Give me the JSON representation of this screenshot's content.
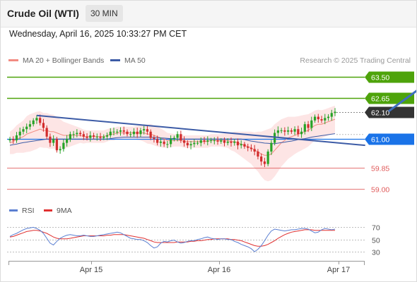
{
  "header": {
    "title": "Crude Oil (WTI)",
    "timeframe": "30 MIN"
  },
  "datetime": "Wednesday, April 16, 2025 10:33:27 PM CET",
  "legend": {
    "ma_bb": "MA 20 + Bollinger Bands",
    "ma50": "MA 50"
  },
  "credit": "Research © 2025 Trading Central",
  "rsi_legend": {
    "rsi": "RSI",
    "ma9": "9MA"
  },
  "colors": {
    "green_level": "#4ea30b",
    "current": "#333333",
    "pivot": "#1a73e8",
    "support": "#e05a5a",
    "ma20": "#f28b82",
    "ma50": "#3c5ba6",
    "band_fill": "#fde0e0",
    "up_candle": "#27a327",
    "down_candle": "#d22d2d",
    "rsi": "#5b7fd1",
    "rsi_ma": "#e03030",
    "arrow": "#3f6fbf"
  },
  "chart_data": [
    {
      "type": "line",
      "name": "price",
      "x_labels": [
        "Apr 15",
        "Apr 16",
        "Apr 17"
      ],
      "y_range": [
        58.6,
        63.9
      ],
      "levels": [
        {
          "label": "63.50",
          "value": 63.5,
          "kind": "resistance"
        },
        {
          "label": "62.65",
          "value": 62.65,
          "kind": "resistance"
        },
        {
          "label": "62.10",
          "value": 62.1,
          "kind": "current"
        },
        {
          "label": "61.00",
          "value": 61.0,
          "kind": "pivot"
        },
        {
          "label": "59.85",
          "value": 59.85,
          "kind": "support"
        },
        {
          "label": "59.00",
          "value": 59.0,
          "kind": "support"
        }
      ],
      "candles_close": [
        61.0,
        60.95,
        61.15,
        61.3,
        61.4,
        61.5,
        61.6,
        61.75,
        61.85,
        61.65,
        61.45,
        61.1,
        60.85,
        61.0,
        60.55,
        60.6,
        60.85,
        61.0,
        61.2,
        61.2,
        61.25,
        61.2,
        61.1,
        61.05,
        61.15,
        61.1,
        61.1,
        61.05,
        61.1,
        61.15,
        61.3,
        61.3,
        61.3,
        61.35,
        61.3,
        61.2,
        61.2,
        61.3,
        61.2,
        61.35,
        61.4,
        61.3,
        61.05,
        61.0,
        60.85,
        60.9,
        60.8,
        60.8,
        61.0,
        61.05,
        61.2,
        60.95,
        60.85,
        60.75,
        60.8,
        60.85,
        60.85,
        60.95,
        60.9,
        60.95,
        60.95,
        60.95,
        60.9,
        60.95,
        60.85,
        60.9,
        60.85,
        60.9,
        60.75,
        60.8,
        60.7,
        60.65,
        60.6,
        60.5,
        60.3,
        60.1,
        60.0,
        60.5,
        60.85,
        61.25,
        61.35,
        61.35,
        61.3,
        61.35,
        61.3,
        61.4,
        61.2,
        61.3,
        61.6,
        61.45,
        61.75,
        61.9,
        61.8,
        61.75,
        61.85,
        61.9,
        62.05,
        62.1
      ],
      "ma20": [
        60.85,
        60.9,
        61.0,
        61.05,
        61.1,
        61.2,
        61.25,
        61.3,
        61.35,
        61.4,
        61.35,
        61.35,
        61.3,
        61.3,
        61.25,
        61.2,
        61.15,
        61.15,
        61.15,
        61.15,
        61.15,
        61.15,
        61.1,
        61.1,
        61.1,
        61.1,
        61.1,
        61.1,
        61.1,
        61.15,
        61.2,
        61.2,
        61.25,
        61.25,
        61.25,
        61.25,
        61.25,
        61.25,
        61.25,
        61.25,
        61.25,
        61.2,
        61.2,
        61.15,
        61.1,
        61.05,
        61.0,
        60.95,
        60.95,
        60.95,
        60.95,
        60.95,
        60.9,
        60.9,
        60.9,
        60.9,
        60.9,
        60.9,
        60.9,
        60.9,
        60.95,
        60.95,
        60.95,
        60.95,
        60.95,
        60.95,
        60.9,
        60.9,
        60.85,
        60.8,
        60.75,
        60.7,
        60.65,
        60.55,
        60.5,
        60.4,
        60.35,
        60.35,
        60.4,
        60.55,
        60.7,
        60.85,
        60.95,
        61.05,
        61.1,
        61.15,
        61.2,
        61.25,
        61.3,
        61.35,
        61.45,
        61.55,
        61.6,
        61.6,
        61.65,
        61.7,
        61.75,
        61.8
      ],
      "ma50": [
        60.75,
        60.78,
        60.8,
        60.83,
        60.86,
        60.88,
        60.9,
        60.92,
        60.94,
        60.96,
        60.98,
        61.0,
        61.0,
        61.0,
        61.0,
        61.0,
        61.0,
        61.0,
        61.0,
        61.0,
        61.0,
        61.0,
        61.0,
        61.0,
        61.0,
        61.0,
        61.0,
        61.0,
        61.0,
        61.0,
        61.02,
        61.04,
        61.06,
        61.07,
        61.08,
        61.08,
        61.08,
        61.08,
        61.08,
        61.08,
        61.08,
        61.08,
        61.08,
        61.07,
        61.06,
        61.05,
        61.04,
        61.03,
        61.02,
        61.02,
        61.0,
        61.0,
        61.0,
        61.0,
        61.0,
        61.0,
        61.0,
        61.0,
        61.0,
        61.0,
        61.0,
        61.0,
        61.0,
        61.0,
        61.0,
        61.0,
        61.0,
        61.0,
        61.0,
        61.0,
        60.98,
        60.95,
        60.92,
        60.9,
        60.88,
        60.86,
        60.84,
        60.83,
        60.82,
        60.82,
        60.84,
        60.86,
        60.88,
        60.9,
        60.92,
        60.95,
        60.98,
        61.0,
        61.02,
        61.05,
        61.08,
        61.1,
        61.12,
        61.14,
        61.16,
        61.18,
        61.2,
        61.22
      ],
      "bb_width": [
        0.45,
        0.5,
        0.55,
        0.6,
        0.65,
        0.72,
        0.75,
        0.75,
        0.75,
        0.72,
        0.7,
        0.7,
        0.7,
        0.68,
        0.65,
        0.6,
        0.55,
        0.5,
        0.45,
        0.4,
        0.35,
        0.3,
        0.28,
        0.25,
        0.25,
        0.25,
        0.25,
        0.25,
        0.25,
        0.25,
        0.25,
        0.25,
        0.25,
        0.25,
        0.25,
        0.25,
        0.25,
        0.25,
        0.28,
        0.3,
        0.35,
        0.38,
        0.4,
        0.4,
        0.4,
        0.38,
        0.35,
        0.3,
        0.28,
        0.25,
        0.25,
        0.25,
        0.25,
        0.25,
        0.25,
        0.25,
        0.25,
        0.25,
        0.25,
        0.25,
        0.25,
        0.25,
        0.25,
        0.25,
        0.28,
        0.3,
        0.35,
        0.4,
        0.45,
        0.5,
        0.55,
        0.6,
        0.65,
        0.72,
        0.8,
        0.9,
        1.0,
        1.05,
        1.05,
        1.05,
        1.0,
        0.95,
        0.9,
        0.85,
        0.8,
        0.75,
        0.72,
        0.7,
        0.68,
        0.65,
        0.62,
        0.6,
        0.58,
        0.56,
        0.55,
        0.55,
        0.55,
        0.55
      ],
      "trendlines": [
        {
          "from": [
            8,
            61.95
          ],
          "to": [
            106,
            60.75
          ]
        }
      ],
      "projection_arrow": {
        "from": [
          113,
          62.12
        ],
        "to": [
          127,
          63.5
        ]
      }
    },
    {
      "type": "line",
      "name": "rsi",
      "series_labels": [
        "RSI",
        "9MA"
      ],
      "y_ticks": [
        30,
        50,
        70
      ],
      "y_range": [
        15,
        82
      ],
      "rsi": [
        55,
        58,
        60,
        63,
        66,
        68,
        69,
        70,
        68,
        65,
        60,
        52,
        44,
        41,
        47,
        52,
        55,
        57,
        58,
        57,
        56,
        56,
        57,
        56,
        55,
        55,
        56,
        57,
        58,
        59,
        60,
        61,
        62,
        61,
        58,
        55,
        52,
        51,
        50,
        50,
        48,
        45,
        40,
        36,
        38,
        44,
        47,
        46,
        48,
        49,
        46,
        44,
        45,
        47,
        48,
        48,
        50,
        51,
        53,
        54,
        52,
        51,
        50,
        51,
        51,
        50,
        50,
        47,
        45,
        42,
        40,
        38,
        35,
        30,
        34,
        40,
        48,
        57,
        64,
        67,
        66,
        65,
        64,
        65,
        66,
        66,
        67,
        68,
        68,
        67,
        64,
        61,
        62,
        66,
        68,
        67,
        66,
        67
      ],
      "ma9": [
        54,
        55,
        57,
        59,
        61,
        63,
        64,
        65,
        65,
        64,
        62,
        60,
        57,
        54,
        52,
        51,
        51,
        51,
        52,
        53,
        54,
        55,
        56,
        56,
        56,
        56,
        56,
        56,
        56,
        57,
        57,
        58,
        58,
        58,
        58,
        57,
        56,
        55,
        54,
        53,
        52,
        50,
        48,
        46,
        45,
        45,
        45,
        45,
        45,
        45,
        46,
        46,
        46,
        46,
        47,
        47,
        48,
        48,
        49,
        50,
        50,
        51,
        51,
        51,
        51,
        51,
        50,
        50,
        49,
        48,
        46,
        44,
        42,
        40,
        39,
        39,
        40,
        42,
        45,
        48,
        52,
        55,
        58,
        60,
        62,
        63,
        64,
        65,
        66,
        66,
        66,
        65,
        65,
        65,
        65,
        65,
        65,
        65
      ]
    }
  ]
}
